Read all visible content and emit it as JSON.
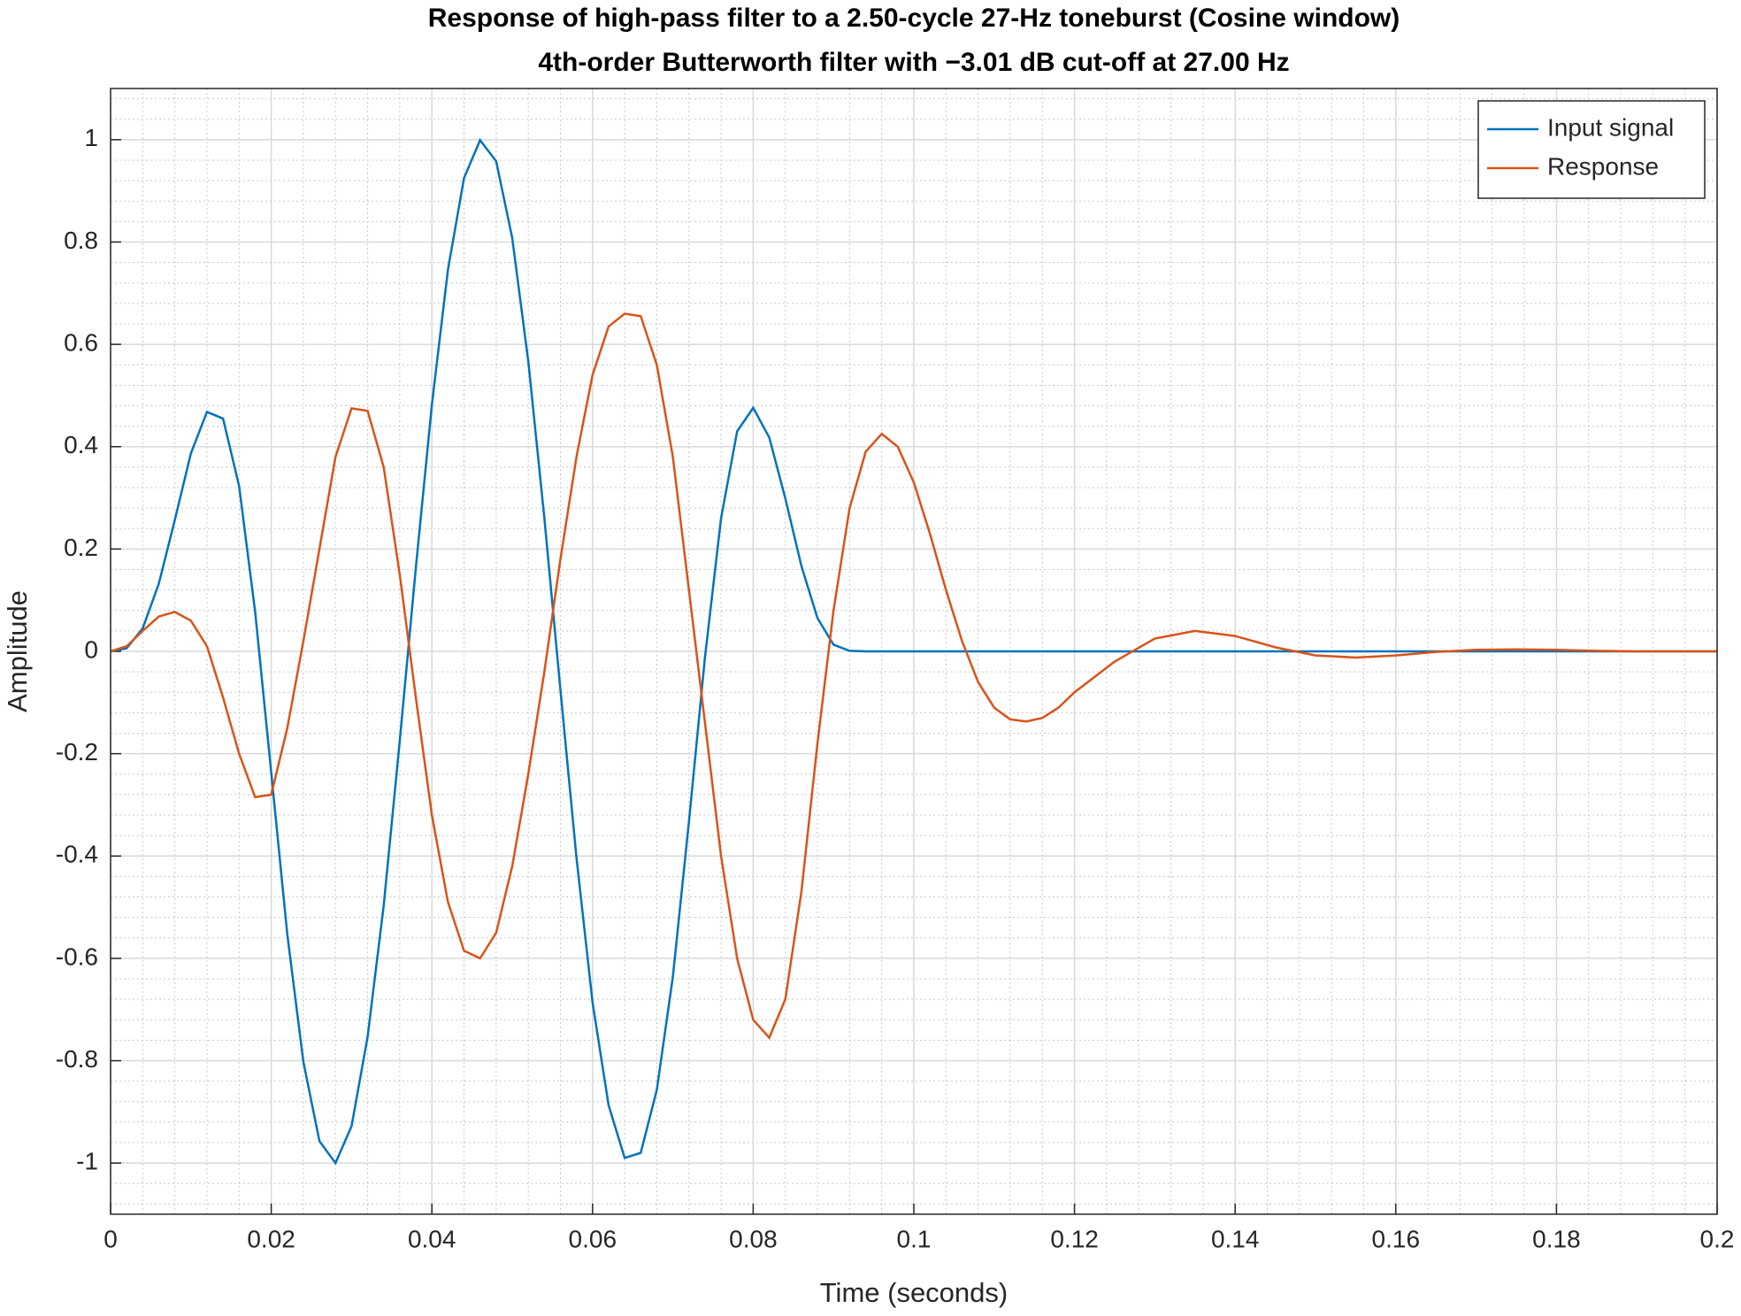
{
  "chart_data": {
    "type": "line",
    "title": [
      "Response of high-pass filter to a 2.50-cycle 27-Hz toneburst (Cosine window)",
      "4th-order Butterworth filter with −3.01 dB cut-off at 27.00 Hz"
    ],
    "xlabel": "Time (seconds)",
    "ylabel": "Amplitude",
    "x": [
      0,
      0.002,
      0.004,
      0.006,
      0.008,
      0.01,
      0.012,
      0.014,
      0.016,
      0.018,
      0.02,
      0.022,
      0.024,
      0.026,
      0.028,
      0.03,
      0.032,
      0.034,
      0.036,
      0.038,
      0.04,
      0.042,
      0.044,
      0.046,
      0.048,
      0.05,
      0.052,
      0.054,
      0.056,
      0.058,
      0.06,
      0.062,
      0.064,
      0.066,
      0.068,
      0.07,
      0.072,
      0.074,
      0.076,
      0.078,
      0.08,
      0.082,
      0.084,
      0.086,
      0.088,
      0.09,
      0.092,
      0.094,
      0.096,
      0.098,
      0.1,
      0.102,
      0.104,
      0.106,
      0.108,
      0.11,
      0.112,
      0.114,
      0.116,
      0.118,
      0.12,
      0.125,
      0.13,
      0.135,
      0.14,
      0.145,
      0.15,
      0.155,
      0.16,
      0.165,
      0.17,
      0.175,
      0.18,
      0.185,
      0.19,
      0.195,
      0.2
    ],
    "series": [
      {
        "name": "Input signal",
        "color": "#0072bd",
        "values": [
          0,
          0.006,
          0.045,
          0.132,
          0.257,
          0.387,
          0.468,
          0.455,
          0.323,
          0.077,
          -0.237,
          -0.553,
          -0.802,
          -0.957,
          -1.0,
          -0.928,
          -0.753,
          -0.497,
          -0.175,
          0.163,
          0.482,
          0.746,
          0.925,
          0.999,
          0.958,
          0.808,
          0.567,
          0.261,
          -0.075,
          -0.403,
          -0.686,
          -0.887,
          -0.99,
          -0.98,
          -0.857,
          -0.636,
          -0.333,
          -0.011,
          0.26,
          0.43,
          0.476,
          0.418,
          0.299,
          0.167,
          0.065,
          0.013,
          0.001,
          0,
          0,
          0,
          0,
          0,
          0,
          0,
          0,
          0,
          0,
          0,
          0,
          0,
          0,
          0,
          0,
          0,
          0,
          0,
          0,
          0,
          0,
          0,
          0,
          0,
          0,
          0,
          0,
          0,
          0
        ]
      },
      {
        "name": "Response",
        "color": "#d95319",
        "values": [
          0,
          0.01,
          0.04,
          0.068,
          0.077,
          0.06,
          0.01,
          -0.09,
          -0.2,
          -0.285,
          -0.28,
          -0.15,
          0.02,
          0.2,
          0.38,
          0.475,
          0.47,
          0.36,
          0.15,
          -0.09,
          -0.32,
          -0.49,
          -0.585,
          -0.6,
          -0.55,
          -0.42,
          -0.24,
          -0.04,
          0.18,
          0.38,
          0.54,
          0.635,
          0.66,
          0.655,
          0.56,
          0.38,
          0.12,
          -0.14,
          -0.4,
          -0.6,
          -0.72,
          -0.755,
          -0.68,
          -0.47,
          -0.18,
          0.08,
          0.28,
          0.39,
          0.425,
          0.4,
          0.33,
          0.23,
          0.12,
          0.02,
          -0.06,
          -0.11,
          -0.133,
          -0.137,
          -0.13,
          -0.11,
          -0.08,
          -0.02,
          0.025,
          0.04,
          0.03,
          0.008,
          -0.008,
          -0.012,
          -0.008,
          -0.001,
          0.003,
          0.004,
          0.003,
          0.001,
          0,
          0,
          0
        ]
      }
    ],
    "xlim": [
      0,
      0.2
    ],
    "xticks": [
      0,
      0.02,
      0.04,
      0.06,
      0.08,
      0.1,
      0.12,
      0.14,
      0.16,
      0.18,
      0.2
    ],
    "ylim": [
      -1.1,
      1.1
    ],
    "yticks": [
      -1,
      -0.8,
      -0.6,
      -0.4,
      -0.2,
      0,
      0.2,
      0.4,
      0.6,
      0.8,
      1
    ],
    "grid": true,
    "minor_grid": true,
    "legend": "northeast"
  }
}
